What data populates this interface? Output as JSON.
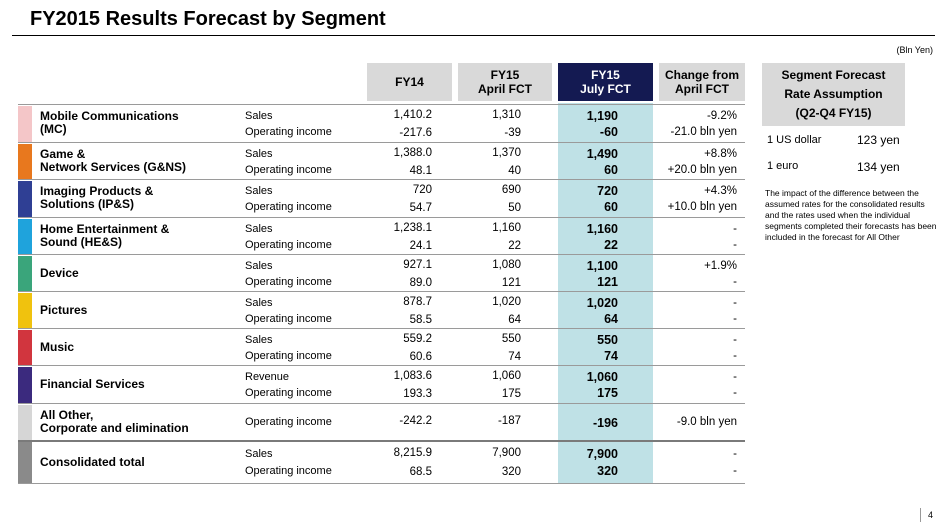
{
  "title": "FY2015  Results Forecast by Segment",
  "unit": "(Bln Yen)",
  "columns": {
    "fy14": "FY14",
    "april_l1": "FY15",
    "april_l2": "April FCT",
    "july_l1": "FY15",
    "july_l2": "July FCT",
    "change_l1": "Change from",
    "change_l2": "April FCT"
  },
  "segments": [
    {
      "name_l1": "Mobile Communications",
      "name_l2": "(MC)",
      "color": "#f4c6c8",
      "rows": [
        {
          "type": "Sales",
          "fy14": "1,410.2",
          "april": "1,310",
          "july": "1,190",
          "change": "-9.2%"
        },
        {
          "type": "Operating income",
          "fy14": "-217.6",
          "april": "-39",
          "july": "-60",
          "change": "-21.0 bln yen"
        }
      ]
    },
    {
      "name_l1": "Game &",
      "name_l2": "Network Services (G&NS)",
      "color": "#e8781e",
      "rows": [
        {
          "type": "Sales",
          "fy14": "1,388.0",
          "april": "1,370",
          "july": "1,490",
          "change": "+8.8%"
        },
        {
          "type": "Operating income",
          "fy14": "48.1",
          "april": "40",
          "july": "60",
          "change": "+20.0 bln yen"
        }
      ]
    },
    {
      "name_l1": "Imaging Products &",
      "name_l2": "Solutions (IP&S)",
      "color": "#2f3f94",
      "rows": [
        {
          "type": "Sales",
          "fy14": "720",
          "april": "690",
          "july": "720",
          "change": "+4.3%"
        },
        {
          "type": "Operating income",
          "fy14": "54.7",
          "april": "50",
          "july": "60",
          "change": "+10.0 bln yen"
        }
      ]
    },
    {
      "name_l1": "Home Entertainment &",
      "name_l2": "Sound (HE&S)",
      "color": "#1fa3dc",
      "rows": [
        {
          "type": "Sales",
          "fy14": "1,238.1",
          "april": "1,160",
          "july": "1,160",
          "change": "-"
        },
        {
          "type": "Operating income",
          "fy14": "24.1",
          "april": "22",
          "july": "22",
          "change": "-"
        }
      ]
    },
    {
      "name_l1": "Device",
      "name_l2": "",
      "color": "#3aa57b",
      "rows": [
        {
          "type": "Sales",
          "fy14": "927.1",
          "april": "1,080",
          "july": "1,100",
          "change": "+1.9%"
        },
        {
          "type": "Operating income",
          "fy14": "89.0",
          "april": "121",
          "july": "121",
          "change": "-"
        }
      ]
    },
    {
      "name_l1": "Pictures",
      "name_l2": "",
      "color": "#f0c20e",
      "rows": [
        {
          "type": "Sales",
          "fy14": "878.7",
          "april": "1,020",
          "july": "1,020",
          "change": "-"
        },
        {
          "type": "Operating income",
          "fy14": "58.5",
          "april": "64",
          "july": "64",
          "change": "-"
        }
      ]
    },
    {
      "name_l1": "Music",
      "name_l2": "",
      "color": "#d1353e",
      "rows": [
        {
          "type": "Sales",
          "fy14": "559.2",
          "april": "550",
          "july": "550",
          "change": "-"
        },
        {
          "type": "Operating income",
          "fy14": "60.6",
          "april": "74",
          "july": "74",
          "change": "-"
        }
      ]
    },
    {
      "name_l1": "Financial Services",
      "name_l2": "",
      "color": "#3b2a7e",
      "rows": [
        {
          "type": "Revenue",
          "fy14": "1,083.6",
          "april": "1,060",
          "july": "1,060",
          "change": "-"
        },
        {
          "type": "Operating income",
          "fy14": "193.3",
          "april": "175",
          "july": "175",
          "change": "-"
        }
      ]
    },
    {
      "name_l1": "All Other,",
      "name_l2": "Corporate and elimination",
      "color": "#d6d6d6",
      "rows": [
        {
          "type": "Operating income",
          "fy14": "-242.2",
          "april": "-187",
          "july": "-196",
          "change": "-9.0 bln yen"
        }
      ]
    },
    {
      "name_l1": "Consolidated total",
      "name_l2": "",
      "color": "#8a8a8a",
      "rows": [
        {
          "type": "Sales",
          "fy14": "8,215.9",
          "april": "7,900",
          "july": "7,900",
          "change": "-"
        },
        {
          "type": "Operating income",
          "fy14": "68.5",
          "april": "320",
          "july": "320",
          "change": "-"
        }
      ]
    }
  ],
  "rate_panel": {
    "head_l1": "Segment Forecast",
    "head_l2": "Rate Assumption",
    "head_l3": "(Q2-Q4 FY15)",
    "usd_label": "1 US dollar",
    "usd_value": "123 yen",
    "eur_label": "1 euro",
    "eur_value": "134 yen",
    "note": "The impact of the difference between the assumed rates for the consolidated results and the rates used when the individual segments completed their forecasts has been included in the forecast for All Other"
  },
  "page_number": "4"
}
